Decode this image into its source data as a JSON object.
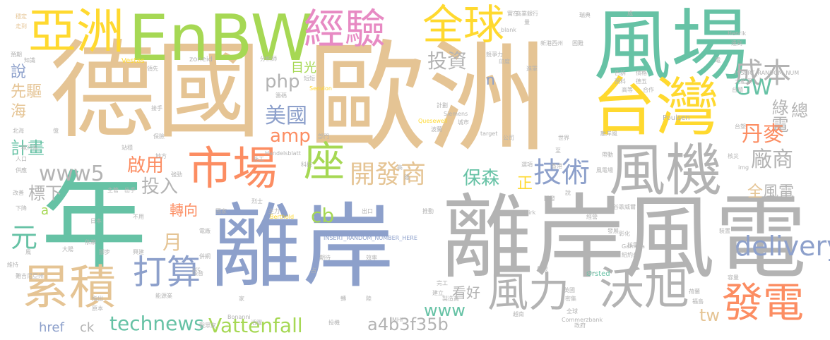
{
  "words": [
    {
      "text": "德國",
      "color": "#e5c494"
    },
    {
      "text": "歐洲",
      "color": "#e5c494"
    },
    {
      "text": "年",
      "color": "#66c2a5"
    },
    {
      "text": "離岸",
      "color": "#8da0cb"
    },
    {
      "text": "風電",
      "color": "#b3b3b3"
    },
    {
      "text": "離岸",
      "color": "#b3b3b3"
    },
    {
      "text": "風場",
      "color": "#66c2a5"
    },
    {
      "text": "EnBW",
      "color": "#a6d854"
    },
    {
      "text": "亞洲",
      "color": "#ffd92f"
    },
    {
      "text": "經驗",
      "color": "#e78ac3"
    },
    {
      "text": "全球",
      "color": "#ffd92f"
    },
    {
      "text": "台灣",
      "color": "#ffd92f"
    },
    {
      "text": "市場",
      "color": "#fc8d62"
    },
    {
      "text": "座",
      "color": "#a6d854"
    },
    {
      "text": "開發商",
      "color": "#e5c494"
    },
    {
      "text": "技術",
      "color": "#8da0cb"
    },
    {
      "text": "風機",
      "color": "#b3b3b3"
    },
    {
      "text": "成本",
      "color": "#b3b3b3"
    },
    {
      "text": "累積",
      "color": "#e5c494"
    },
    {
      "text": "打算",
      "color": "#8da0cb"
    },
    {
      "text": "風力",
      "color": "#b3b3b3"
    },
    {
      "text": "沃旭",
      "color": "#b3b3b3"
    },
    {
      "text": "發電",
      "color": "#fc8d62"
    },
    {
      "text": "delivery",
      "color": "#8da0cb"
    },
    {
      "text": "投資",
      "color": "#b3b3b3"
    },
    {
      "text": "php",
      "color": "#b3b3b3"
    },
    {
      "text": "目光",
      "color": "#a6d854"
    },
    {
      "text": "美國",
      "color": "#8da0cb"
    },
    {
      "text": "amp",
      "color": "#fc8d62"
    },
    {
      "text": "www5",
      "color": "#b3b3b3"
    },
    {
      "text": "啟用",
      "color": "#fc8d62"
    },
    {
      "text": "投入",
      "color": "#b3b3b3"
    },
    {
      "text": "計畫",
      "color": "#66c2a5"
    },
    {
      "text": "說",
      "color": "#8da0cb"
    },
    {
      "text": "先驅",
      "color": "#e5c494"
    },
    {
      "text": "海",
      "color": "#e5c494"
    },
    {
      "text": "GW",
      "color": "#66c2a5"
    },
    {
      "text": "綠電",
      "color": "#b3b3b3"
    },
    {
      "text": "總",
      "color": "#b3b3b3"
    },
    {
      "text": "丹麥",
      "color": "#fc8d62"
    },
    {
      "text": "廠商",
      "color": "#b3b3b3"
    },
    {
      "text": "全",
      "color": "#e5c494"
    },
    {
      "text": "風電",
      "color": "#b3b3b3"
    },
    {
      "text": "保森",
      "color": "#66c2a5"
    },
    {
      "text": "正",
      "color": "#ffd92f"
    },
    {
      "text": "n",
      "color": "#8da0cb"
    },
    {
      "text": "cb",
      "color": "#a6d854"
    },
    {
      "text": "標下",
      "color": "#b3b3b3"
    },
    {
      "text": "a",
      "color": "#a6d854"
    },
    {
      "text": "元",
      "color": "#66c2a5"
    },
    {
      "text": "月",
      "color": "#e5c494"
    },
    {
      "text": "轉向",
      "color": "#fc8d62"
    },
    {
      "text": "看好",
      "color": "#b3b3b3"
    },
    {
      "text": "www",
      "color": "#66c2a5"
    },
    {
      "text": "tw",
      "color": "#e5c494"
    },
    {
      "text": "technews",
      "color": "#66c2a5"
    },
    {
      "text": "Vattenfall",
      "color": "#a6d854"
    },
    {
      "text": "a4b3f35b",
      "color": "#b3b3b3"
    },
    {
      "text": "href",
      "color": "#8da0cb"
    },
    {
      "text": "ck",
      "color": "#b3b3b3"
    },
    {
      "text": "Vestas",
      "color": "#ffd92f"
    },
    {
      "text": "zoneid",
      "color": "#b3b3b3"
    },
    {
      "text": "Senvion",
      "color": "#ffd92f"
    },
    {
      "text": "Siemens",
      "color": "#b3b3b3"
    },
    {
      "text": "Quesewell",
      "color": "#ffd92f"
    },
    {
      "text": "target",
      "color": "#b3b3b3"
    },
    {
      "text": "_blank",
      "color": "#b3b3b3"
    },
    {
      "text": "Henrik",
      "color": "#b3b3b3"
    },
    {
      "text": "Poulsen",
      "color": "#b3b3b3"
    },
    {
      "text": "INSERT_RANDOM_NUM",
      "color": "#b3b3b3"
    },
    {
      "text": "INSERT_RANDOM_NUMBER_HERE",
      "color": "#8da0cb"
    },
    {
      "text": "Handelsblatt",
      "color": "#b3b3b3"
    },
    {
      "text": "Berthold",
      "color": "#ffd92f"
    },
    {
      "text": "Bonanni",
      "color": "#b3b3b3"
    },
    {
      "text": "Commerzbank",
      "color": "#b3b3b3"
    },
    {
      "text": "Ørsted",
      "color": "#66c2a5"
    },
    {
      "text": "Gamesa",
      "color": "#b3b3b3"
    },
    {
      "text": "Dirk",
      "color": "#b3b3b3"
    },
    {
      "text": "MHI",
      "color": "#b3b3b3"
    },
    {
      "text": "img",
      "color": "#b3b3b3"
    },
    {
      "text": "src",
      "color": "#b3b3b3"
    },
    {
      "text": "分析師",
      "color": "#b3b3b3"
    },
    {
      "text": "商業銀行",
      "color": "#b3b3b3"
    },
    {
      "text": "實在",
      "color": "#b3b3b3"
    },
    {
      "text": "量",
      "color": "#b3b3b3"
    },
    {
      "text": "成",
      "color": "#b3b3b3"
    },
    {
      "text": "瑞典",
      "color": "#b3b3b3"
    },
    {
      "text": "穩定",
      "color": "#e5c494"
    },
    {
      "text": "走到",
      "color": "#e5c494"
    },
    {
      "text": "預期",
      "color": "#b3b3b3"
    },
    {
      "text": "知識",
      "color": "#b3b3b3"
    },
    {
      "text": "新港西州",
      "color": "#b3b3b3"
    },
    {
      "text": "困難",
      "color": "#b3b3b3"
    },
    {
      "text": "達到",
      "color": "#b3b3b3"
    },
    {
      "text": "印度",
      "color": "#b3b3b3"
    },
    {
      "text": "競爭力",
      "color": "#b3b3b3"
    },
    {
      "text": "進軍",
      "color": "#b3b3b3"
    },
    {
      "text": "告訴",
      "color": "#b3b3b3"
    },
    {
      "text": "價格",
      "color": "#b3b3b3"
    },
    {
      "text": "電",
      "color": "#b3b3b3"
    },
    {
      "text": "大能源",
      "color": "#b3b3b3"
    },
    {
      "text": "預料",
      "color": "#b3b3b3"
    },
    {
      "text": "德五",
      "color": "#b3b3b3"
    },
    {
      "text": "短短",
      "color": "#b3b3b3"
    },
    {
      "text": "籌碼",
      "color": "#b3b3b3"
    },
    {
      "text": "接手",
      "color": "#b3b3b3"
    },
    {
      "text": "領先",
      "color": "#b3b3b3"
    },
    {
      "text": "計劃",
      "color": "#b3b3b3"
    },
    {
      "text": "城市",
      "color": "#b3b3b3"
    },
    {
      "text": "波蘭",
      "color": "#b3b3b3"
    },
    {
      "text": "高等",
      "color": "#b3b3b3"
    },
    {
      "text": "合作",
      "color": "#b3b3b3"
    },
    {
      "text": "台積",
      "color": "#b3b3b3"
    },
    {
      "text": "北海",
      "color": "#b3b3b3"
    },
    {
      "text": "億",
      "color": "#b3b3b3"
    },
    {
      "text": "保險",
      "color": "#b3b3b3"
    },
    {
      "text": "部門",
      "color": "#b3b3b3"
    },
    {
      "text": "公司",
      "color": "#b3b3b3"
    },
    {
      "text": "世界",
      "color": "#b3b3b3"
    },
    {
      "text": "離岸風",
      "color": "#b3b3b3"
    },
    {
      "text": "台塑",
      "color": "#b3b3b3"
    },
    {
      "text": "執行長",
      "color": "#b3b3b3"
    },
    {
      "text": "站穩",
      "color": "#b3b3b3"
    },
    {
      "text": "地方",
      "color": "#b3b3b3"
    },
    {
      "text": "施工",
      "color": "#b3b3b3"
    },
    {
      "text": "科技",
      "color": "#b3b3b3"
    },
    {
      "text": "雖",
      "color": "#b3b3b3"
    },
    {
      "text": "帶動",
      "color": "#b3b3b3"
    },
    {
      "text": "核災",
      "color": "#b3b3b3"
    },
    {
      "text": "人口",
      "color": "#b3b3b3"
    },
    {
      "text": "強勁",
      "color": "#b3b3b3"
    },
    {
      "text": "主管",
      "color": "#b3b3b3"
    },
    {
      "text": "出手",
      "color": "#b3b3b3"
    },
    {
      "text": "供應",
      "color": "#b3b3b3"
    },
    {
      "text": "改善",
      "color": "#b3b3b3"
    },
    {
      "text": "下降",
      "color": "#b3b3b3"
    },
    {
      "text": "國家",
      "color": "#b3b3b3"
    },
    {
      "text": "烈士",
      "color": "#b3b3b3"
    },
    {
      "text": "主力",
      "color": "#b3b3b3"
    },
    {
      "text": "出口",
      "color": "#b3b3b3"
    },
    {
      "text": "推動",
      "color": "#b3b3b3"
    },
    {
      "text": "開發",
      "color": "#b3b3b3"
    },
    {
      "text": "日本",
      "color": "#b3b3b3"
    },
    {
      "text": "不用",
      "color": "#b3b3b3"
    },
    {
      "text": "電廠",
      "color": "#b3b3b3"
    },
    {
      "text": "依賴",
      "color": "#b3b3b3"
    },
    {
      "text": "腳步",
      "color": "#b3b3b3"
    },
    {
      "text": "興建",
      "color": "#b3b3b3"
    },
    {
      "text": "大陽",
      "color": "#b3b3b3"
    },
    {
      "text": "併網",
      "color": "#b3b3b3"
    },
    {
      "text": "期待",
      "color": "#b3b3b3"
    },
    {
      "text": "效率",
      "color": "#b3b3b3"
    },
    {
      "text": "發展",
      "color": "#b3b3b3"
    },
    {
      "text": "彰化",
      "color": "#b3b3b3"
    },
    {
      "text": "核電",
      "color": "#b3b3b3"
    },
    {
      "text": "紐約州",
      "color": "#b3b3b3"
    },
    {
      "text": "因素",
      "color": "#b3b3b3"
    },
    {
      "text": "裝置",
      "color": "#b3b3b3"
    },
    {
      "text": "容量",
      "color": "#b3b3b3"
    },
    {
      "text": "第一",
      "color": "#b3b3b3"
    },
    {
      "text": "熱衷",
      "color": "#b3b3b3"
    },
    {
      "text": "噪音",
      "color": "#b3b3b3"
    },
    {
      "text": "占",
      "color": "#b3b3b3"
    },
    {
      "text": "完工",
      "color": "#b3b3b3"
    },
    {
      "text": "建立",
      "color": "#b3b3b3"
    },
    {
      "text": "製造商",
      "color": "#b3b3b3"
    },
    {
      "text": "密集",
      "color": "#b3b3b3"
    },
    {
      "text": "英國",
      "color": "#b3b3b3"
    },
    {
      "text": "荷蘭",
      "color": "#b3b3b3"
    },
    {
      "text": "福島",
      "color": "#b3b3b3"
    },
    {
      "text": "觀眾家",
      "color": "#b3b3b3"
    },
    {
      "text": "活躍",
      "color": "#b3b3b3"
    },
    {
      "text": "投機",
      "color": "#b3b3b3"
    },
    {
      "text": "越南",
      "color": "#b3b3b3"
    },
    {
      "text": "政府",
      "color": "#b3b3b3"
    },
    {
      "text": "指出",
      "color": "#b3b3b3"
    },
    {
      "text": "原本",
      "color": "#b3b3b3"
    },
    {
      "text": "能源業",
      "color": "#b3b3b3"
    },
    {
      "text": "維持",
      "color": "#b3b3b3"
    },
    {
      "text": "風",
      "color": "#b3b3b3"
    },
    {
      "text": "難吉尼亞州",
      "color": "#b3b3b3"
    },
    {
      "text": "轉",
      "color": "#b3b3b3"
    },
    {
      "text": "陸",
      "color": "#b3b3b3"
    },
    {
      "text": "家",
      "color": "#b3b3b3"
    },
    {
      "text": "谷歌威爾",
      "color": "#b3b3b3"
    },
    {
      "text": "經營",
      "color": "#b3b3b3"
    },
    {
      "text": "風電場",
      "color": "#b3b3b3"
    },
    {
      "text": "選項",
      "color": "#b3b3b3"
    },
    {
      "text": "香港",
      "color": "#b3b3b3"
    },
    {
      "text": "至",
      "color": "#b3b3b3"
    },
    {
      "text": "高",
      "color": "#b3b3b3"
    },
    {
      "text": "說",
      "color": "#b3b3b3"
    },
    {
      "text": "全球",
      "color": "#b3b3b3"
    }
  ]
}
